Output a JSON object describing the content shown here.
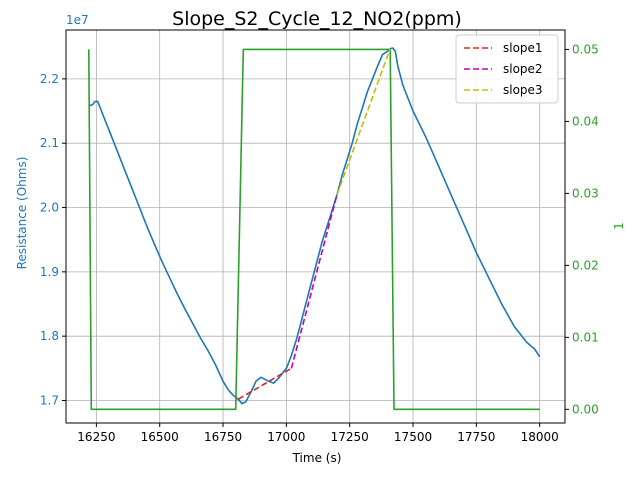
{
  "chart_data": {
    "type": "line",
    "title": "Slope_S2_Cycle_12_NO2(ppm)",
    "xlabel": "Time (s)",
    "ylabel_left": "Resistance (Ohms)",
    "ylabel_right": "1",
    "offset_text": "1e7",
    "xlim": [
      16130,
      18100
    ],
    "ylim_left": [
      16650000,
      22760000
    ],
    "ylim_right": [
      -0.0019,
      0.0527
    ],
    "x_ticks": [
      16250,
      16500,
      16750,
      17000,
      17250,
      17500,
      17750,
      18000
    ],
    "y_left_ticks": [
      1.7,
      1.8,
      1.9,
      2.0,
      2.1,
      2.2
    ],
    "y_right_ticks": [
      0.0,
      0.01,
      0.02,
      0.03,
      0.04,
      0.05
    ],
    "grid": true,
    "legend_position": "top-right",
    "colors": {
      "resistance": "#1f77b4",
      "concentration": "#2ca02c",
      "slope1": "#d62728",
      "slope2": "#bf00bf",
      "slope3": "#bfbf00"
    },
    "series": [
      {
        "key": "resistance",
        "axis": "left",
        "style": "solid",
        "x": [
          16220,
          16235,
          16245,
          16255,
          16265,
          16280,
          16300,
          16330,
          16360,
          16390,
          16420,
          16450,
          16480,
          16510,
          16540,
          16570,
          16600,
          16630,
          16660,
          16690,
          16720,
          16750,
          16770,
          16790,
          16810,
          16825,
          16840,
          16860,
          16880,
          16900,
          16930,
          16950,
          16970,
          16990,
          17000,
          17020,
          17040,
          17060,
          17080,
          17100,
          17120,
          17140,
          17160,
          17180,
          17200,
          17220,
          17240,
          17260,
          17280,
          17300,
          17320,
          17340,
          17360,
          17380,
          17400,
          17410,
          17420,
          17430,
          17440,
          17460,
          17500,
          17550,
          17600,
          17650,
          17700,
          17750,
          17800,
          17850,
          17900,
          17950,
          17980,
          18000
        ],
        "y": [
          21580000,
          21600000,
          21650000,
          21650000,
          21550000,
          21400000,
          21200000,
          20900000,
          20600000,
          20300000,
          20000000,
          19700000,
          19420000,
          19150000,
          18900000,
          18650000,
          18420000,
          18200000,
          17980000,
          17780000,
          17560000,
          17300000,
          17170000,
          17080000,
          17020000,
          16950000,
          16980000,
          17130000,
          17300000,
          17360000,
          17300000,
          17270000,
          17350000,
          17450000,
          17500000,
          17700000,
          17950000,
          18250000,
          18550000,
          18850000,
          19150000,
          19450000,
          19700000,
          19950000,
          20200000,
          20500000,
          20750000,
          21000000,
          21300000,
          21550000,
          21800000,
          22000000,
          22200000,
          22380000,
          22430000,
          22470000,
          22480000,
          22430000,
          22200000,
          21900000,
          21500000,
          21100000,
          20650000,
          20200000,
          19750000,
          19300000,
          18900000,
          18500000,
          18150000,
          17900000,
          17800000,
          17680000
        ]
      },
      {
        "key": "concentration",
        "axis": "right",
        "style": "solid",
        "x": [
          16220,
          16230,
          16800,
          16830,
          17410,
          17425,
          18000
        ],
        "y": [
          0.05,
          0.0,
          0.0,
          0.05,
          0.05,
          0.0,
          0.0
        ]
      },
      {
        "key": "slope1",
        "name": "slope1",
        "axis": "left",
        "style": "dashed",
        "x": [
          16810,
          17020
        ],
        "y": [
          17020000,
          17500000
        ]
      },
      {
        "key": "slope2",
        "name": "slope2",
        "axis": "left",
        "style": "dashed",
        "x": [
          17020,
          17200
        ],
        "y": [
          17500000,
          20200000
        ]
      },
      {
        "key": "slope3",
        "name": "slope3",
        "axis": "left",
        "style": "dashed",
        "x": [
          17200,
          17410
        ],
        "y": [
          20200000,
          22470000
        ]
      }
    ]
  }
}
